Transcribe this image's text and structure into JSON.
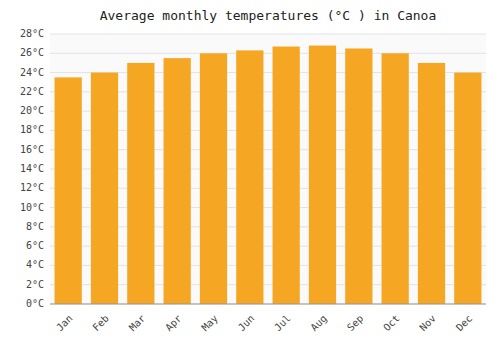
{
  "chart_data": {
    "type": "bar",
    "title": "Average monthly temperatures (°C ) in Canoa",
    "categories": [
      "Jan",
      "Feb",
      "Mar",
      "Apr",
      "May",
      "Jun",
      "Jul",
      "Aug",
      "Sep",
      "Oct",
      "Nov",
      "Dec"
    ],
    "values": [
      23.5,
      24.0,
      25.0,
      25.5,
      26.0,
      26.3,
      26.7,
      26.8,
      26.5,
      26.0,
      25.0,
      24.0
    ],
    "color": "#F5A623",
    "ylim": [
      0,
      28
    ],
    "yticks": [
      {
        "value": 0,
        "label": "0°C"
      },
      {
        "value": 2,
        "label": "2°C"
      },
      {
        "value": 4,
        "label": "4°C"
      },
      {
        "value": 6,
        "label": "6°C"
      },
      {
        "value": 8,
        "label": "8°C"
      },
      {
        "value": 10,
        "label": "10°C"
      },
      {
        "value": 12,
        "label": "12°C"
      },
      {
        "value": 14,
        "label": "14°C"
      },
      {
        "value": 16,
        "label": "16°C"
      },
      {
        "value": 18,
        "label": "18°C"
      },
      {
        "value": 20,
        "label": "20°C"
      },
      {
        "value": 22,
        "label": "22°C"
      },
      {
        "value": 24,
        "label": "24°C"
      },
      {
        "value": 26,
        "label": "26°C"
      },
      {
        "value": 28,
        "label": "28°C"
      }
    ],
    "grid": true
  }
}
